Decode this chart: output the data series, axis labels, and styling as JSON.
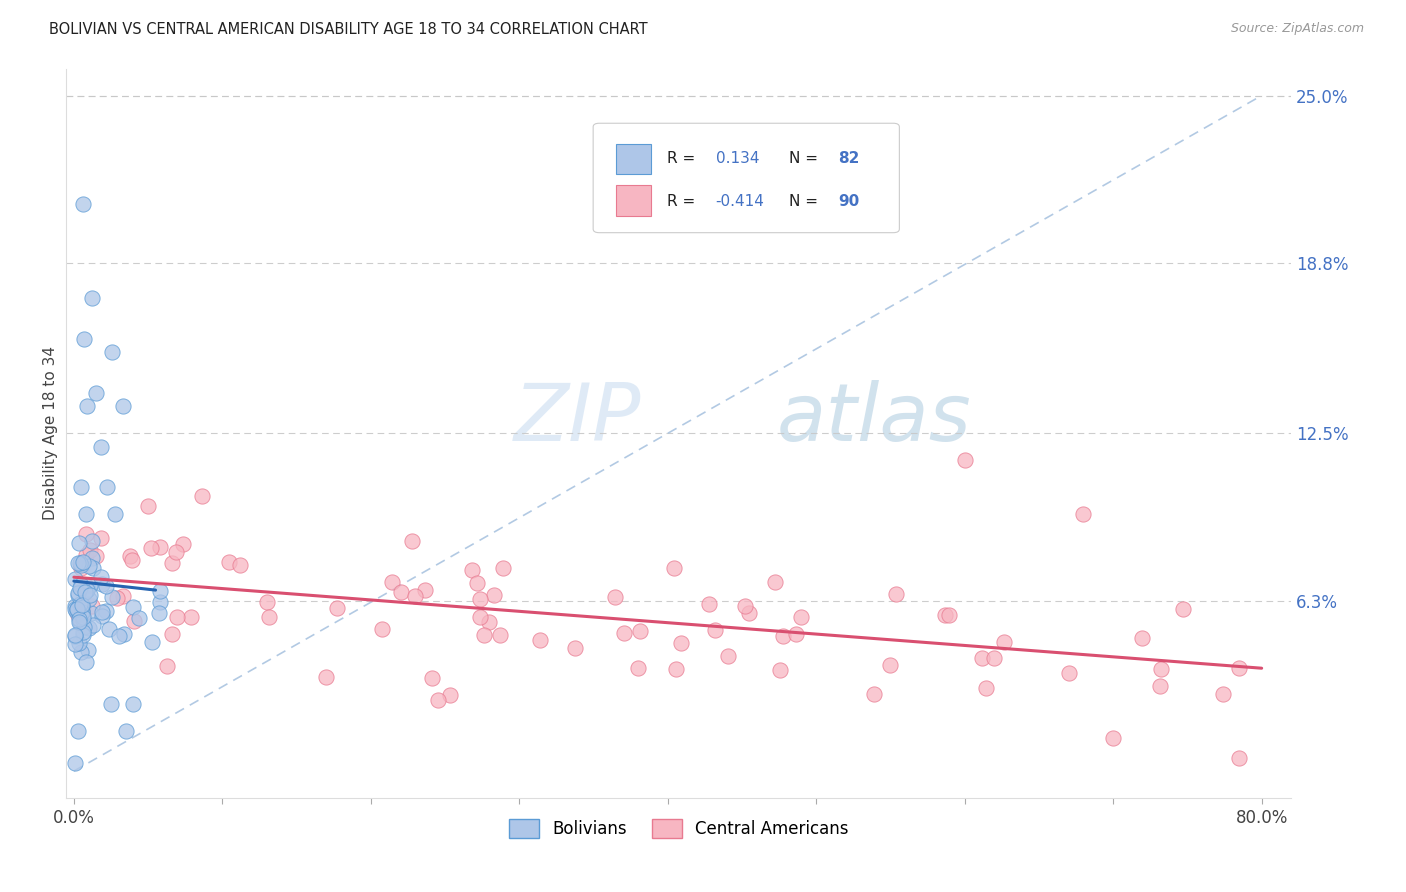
{
  "title": "BOLIVIAN VS CENTRAL AMERICAN DISABILITY AGE 18 TO 34 CORRELATION CHART",
  "source": "Source: ZipAtlas.com",
  "ylabel": "Disability Age 18 to 34",
  "xlim": [
    -0.005,
    0.82
  ],
  "ylim": [
    -0.01,
    0.26
  ],
  "bolivian_R": 0.134,
  "bolivian_N": 82,
  "central_R": -0.414,
  "central_N": 90,
  "bolivian_color": "#aec6e8",
  "central_color": "#f7b6c2",
  "bolivian_edge": "#5b9bd5",
  "central_edge": "#e87a90",
  "trend_bolivian_color": "#2563b0",
  "trend_central_color": "#d94f70",
  "trend_dashed_color": "#aac4e0",
  "background_color": "#ffffff",
  "grid_color": "#c8c8c8",
  "ytick_pos": [
    0.063,
    0.125,
    0.188,
    0.25
  ],
  "ytick_labels": [
    "6.3%",
    "12.5%",
    "18.8%",
    "25.0%"
  ],
  "watermark_color": "#d8eaf8"
}
